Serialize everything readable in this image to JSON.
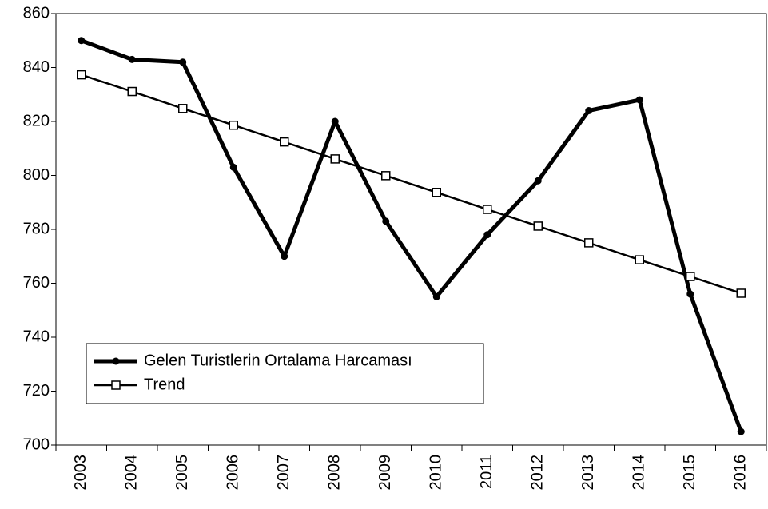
{
  "chart_data": {
    "type": "line",
    "categories": [
      "2003",
      "2004",
      "2005",
      "2006",
      "2007",
      "2008",
      "2009",
      "2010",
      "2011",
      "2012",
      "2013",
      "2014",
      "2015",
      "2016"
    ],
    "series": [
      {
        "name": "Gelen Turistlerin Ortalama Harcaması",
        "color": "#000000",
        "marker": "circle",
        "values": [
          850,
          843,
          842,
          803,
          770,
          820,
          783,
          755,
          778,
          798,
          824,
          828,
          756,
          705
        ]
      },
      {
        "name": "Trend",
        "color": "#000000",
        "marker": "square",
        "values": [
          837.3,
          831.1,
          824.8,
          818.6,
          812.4,
          806.1,
          799.9,
          793.7,
          787.4,
          781.2,
          775.0,
          768.7,
          762.5,
          756.3
        ]
      }
    ],
    "ylim": [
      700,
      860
    ],
    "yticks": [
      700,
      720,
      740,
      760,
      780,
      800,
      820,
      840,
      860
    ],
    "grid": false,
    "legend": "lower left"
  }
}
